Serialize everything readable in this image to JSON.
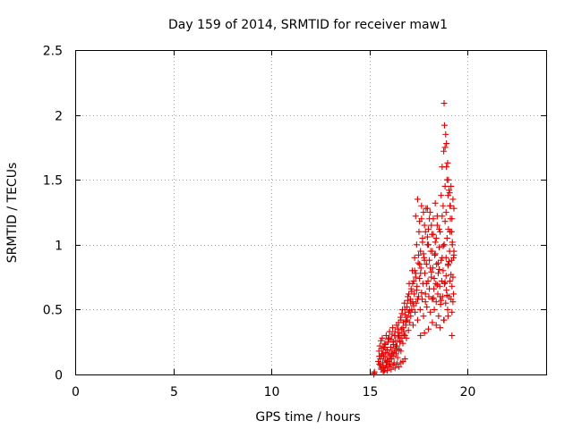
{
  "chart_data": {
    "type": "scatter",
    "title": "Day 159 of 2014, SRMTID for receiver maw1",
    "xlabel": "GPS time / hours",
    "ylabel": "SRMTID / TECUs",
    "xlim": [
      0,
      24
    ],
    "ylim": [
      0,
      2.5
    ],
    "xticks": [
      "0",
      "5",
      "10",
      "15",
      "20"
    ],
    "xtick_values": [
      0,
      5,
      10,
      15,
      20
    ],
    "yticks": [
      "0",
      "0.5",
      "1",
      "1.5",
      "2",
      "2.5"
    ],
    "ytick_values": [
      0,
      0.5,
      1,
      1.5,
      2,
      2.5
    ],
    "grid": true,
    "legend": "none",
    "marker": "plus",
    "color": "#e00000",
    "series": [
      {
        "x": [
          15.22,
          15.23,
          15.25,
          15.45,
          15.48,
          15.5,
          15.52,
          15.55,
          15.58,
          15.6,
          15.62,
          15.65,
          15.68,
          15.7,
          15.72,
          15.75,
          15.78,
          15.8,
          15.82,
          15.85,
          15.88,
          15.9,
          15.92,
          15.95,
          15.98,
          16.0,
          16.02,
          16.05,
          16.08,
          16.1,
          16.12,
          16.15,
          16.18,
          16.2,
          16.22,
          16.25,
          16.28,
          16.3,
          16.33,
          16.35,
          16.38,
          16.4,
          16.43,
          16.45,
          16.48,
          16.5,
          16.52,
          16.55,
          16.58,
          16.6,
          16.62,
          16.65,
          16.68,
          16.7,
          16.72,
          16.75,
          16.78,
          16.8,
          16.82,
          16.85,
          16.88,
          16.9,
          16.92,
          16.95,
          16.98,
          17.0,
          17.02,
          17.05,
          17.08,
          17.1,
          17.12,
          17.15,
          17.18,
          17.2,
          17.22,
          17.25,
          17.28,
          17.3,
          17.32,
          17.35,
          17.38,
          17.4,
          17.42,
          17.45,
          17.48,
          17.5,
          17.52,
          17.55,
          17.58,
          17.6,
          17.62,
          17.65,
          17.68,
          17.7,
          17.72,
          17.75,
          17.78,
          17.8,
          17.82,
          17.85,
          17.88,
          17.9,
          17.92,
          17.95,
          17.98,
          18.0,
          18.02,
          18.05,
          18.08,
          18.1,
          18.12,
          18.15,
          18.18,
          18.2,
          18.22,
          18.25,
          18.28,
          18.3,
          18.32,
          18.35,
          18.38,
          18.4,
          18.42,
          18.45,
          18.48,
          18.5,
          18.52,
          18.55,
          18.58,
          18.6,
          18.62,
          18.65,
          18.68,
          18.7,
          18.72,
          18.75,
          18.78,
          18.8,
          18.82,
          18.85,
          18.88,
          18.9,
          18.92,
          18.95,
          18.98,
          19.0,
          19.02,
          19.05,
          19.08,
          19.1,
          19.12,
          19.15,
          19.18,
          19.2,
          19.22,
          19.25,
          19.28,
          19.3,
          15.5,
          15.6,
          15.7,
          15.8,
          15.9,
          16.0,
          16.1,
          16.2,
          16.3,
          16.4,
          16.5,
          16.6,
          16.7,
          16.8,
          16.9,
          17.0,
          17.1,
          17.2,
          17.3,
          17.4,
          17.5,
          17.6,
          17.7,
          17.8,
          17.9,
          18.0,
          18.1,
          18.2,
          18.3,
          18.4,
          18.5,
          18.6,
          18.7,
          18.8,
          18.9,
          19.0,
          19.1,
          19.2,
          19.3,
          15.55,
          15.65,
          15.75,
          15.85,
          15.95,
          16.05,
          16.15,
          16.25,
          16.35,
          16.45,
          16.55,
          16.65,
          16.75,
          16.85,
          16.95,
          17.05,
          17.15,
          17.25,
          17.35,
          17.45,
          17.55,
          17.65,
          17.75,
          17.85,
          17.95,
          18.05,
          18.15,
          18.25,
          18.35,
          18.45,
          18.55,
          18.65,
          18.75,
          18.85,
          18.95,
          19.05,
          19.15,
          19.25,
          17.35,
          17.45,
          17.55,
          17.65,
          17.75,
          17.85,
          17.95,
          18.05,
          18.15,
          18.25,
          18.35,
          18.45,
          18.55,
          18.65,
          18.7,
          18.75,
          18.78,
          18.85,
          18.9,
          18.92,
          18.95,
          19.0,
          19.05,
          19.1,
          19.15,
          19.2,
          19.25,
          19.3,
          18.8,
          18.82,
          18.85,
          18.88,
          18.92,
          18.98,
          19.02,
          19.08,
          19.12,
          19.18,
          19.22,
          19.28,
          17.6,
          17.8,
          18.0,
          18.2,
          18.4,
          18.6,
          18.8,
          19.0,
          19.2,
          15.6,
          15.7,
          15.8,
          15.9,
          16.0,
          16.1,
          16.2,
          16.3,
          16.4,
          16.5,
          16.6,
          16.7,
          16.8
        ],
        "y": [
          0.0,
          0.01,
          0.02,
          0.1,
          0.18,
          0.08,
          0.22,
          0.12,
          0.26,
          0.05,
          0.15,
          0.28,
          0.09,
          0.2,
          0.14,
          0.03,
          0.24,
          0.11,
          0.17,
          0.3,
          0.07,
          0.19,
          0.13,
          0.25,
          0.1,
          0.16,
          0.33,
          0.08,
          0.21,
          0.27,
          0.12,
          0.18,
          0.36,
          0.14,
          0.23,
          0.09,
          0.3,
          0.2,
          0.26,
          0.16,
          0.38,
          0.22,
          0.13,
          0.29,
          0.4,
          0.19,
          0.32,
          0.25,
          0.44,
          0.18,
          0.35,
          0.28,
          0.5,
          0.24,
          0.4,
          0.33,
          0.55,
          0.3,
          0.46,
          0.38,
          0.28,
          0.52,
          0.42,
          0.6,
          0.34,
          0.48,
          0.7,
          0.4,
          0.58,
          0.45,
          0.66,
          0.5,
          0.8,
          0.56,
          0.38,
          0.72,
          0.62,
          0.9,
          0.48,
          0.78,
          0.55,
          1.0,
          0.68,
          0.42,
          0.86,
          0.6,
          1.1,
          0.74,
          0.5,
          0.95,
          0.82,
          1.2,
          0.58,
          1.05,
          0.7,
          0.45,
          0.9,
          1.15,
          0.78,
          0.62,
          1.28,
          0.85,
          0.52,
          1.0,
          0.72,
          1.12,
          0.6,
          0.88,
          1.25,
          0.48,
          0.95,
          0.75,
          1.08,
          0.58,
          0.82,
          1.2,
          0.66,
          0.5,
          0.92,
          1.02,
          0.7,
          0.56,
          0.85,
          1.15,
          0.62,
          0.78,
          0.45,
          0.98,
          0.68,
          1.1,
          0.54,
          0.88,
          0.72,
          1.22,
          0.6,
          0.8,
          0.42,
          1.0,
          0.7,
          1.18,
          0.55,
          0.9,
          0.65,
          1.05,
          0.5,
          0.84,
          1.12,
          0.6,
          0.95,
          0.72,
          1.2,
          0.58,
          0.88,
          0.48,
          1.02,
          0.75,
          0.62,
          0.92,
          0.14,
          0.2,
          0.06,
          0.23,
          0.1,
          0.28,
          0.15,
          0.25,
          0.33,
          0.2,
          0.3,
          0.42,
          0.36,
          0.5,
          0.44,
          0.62,
          0.55,
          0.7,
          0.8,
          0.65,
          0.92,
          0.78,
          1.02,
          0.88,
          0.7,
          1.0,
          0.82,
          0.95,
          0.74,
          1.05,
          0.86,
          0.6,
          0.9,
          1.0,
          0.76,
          0.85,
          1.1,
          0.68,
          0.95,
          0.07,
          0.16,
          0.21,
          0.09,
          0.27,
          0.12,
          0.31,
          0.17,
          0.22,
          0.35,
          0.26,
          0.47,
          0.31,
          0.41,
          0.57,
          0.49,
          0.64,
          0.53,
          0.75,
          0.58,
          0.85,
          0.63,
          0.93,
          0.56,
          1.06,
          0.66,
          0.79,
          0.59,
          0.93,
          0.69,
          0.81,
          0.57,
          0.99,
          0.71,
          0.61,
          0.87,
          0.77,
          0.56,
          1.22,
          1.35,
          1.18,
          1.3,
          1.25,
          1.1,
          1.28,
          1.2,
          1.15,
          1.08,
          1.32,
          1.22,
          1.12,
          1.38,
          1.6,
          1.3,
          1.72,
          1.45,
          1.25,
          1.6,
          1.5,
          1.38,
          1.42,
          1.3,
          1.45,
          1.2,
          1.35,
          1.28,
          2.09,
          1.92,
          1.75,
          1.85,
          1.78,
          1.63,
          1.5,
          1.4,
          1.3,
          1.1,
          1.0,
          0.9,
          0.3,
          0.32,
          0.35,
          0.4,
          0.38,
          0.36,
          0.42,
          0.45,
          0.3,
          0.04,
          0.02,
          0.05,
          0.03,
          0.06,
          0.04,
          0.07,
          0.05,
          0.08,
          0.06,
          0.09,
          0.1,
          0.12
        ]
      }
    ]
  }
}
